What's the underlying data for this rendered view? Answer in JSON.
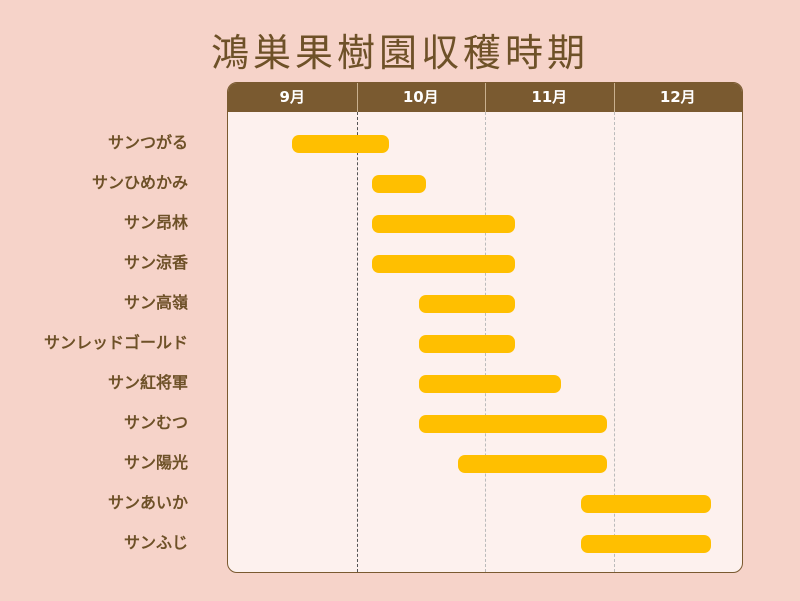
{
  "chart_data": {
    "type": "gantt",
    "title": "鴻巣果樹園収穫時期",
    "months": [
      "9月",
      "10月",
      "11月",
      "12月"
    ],
    "x_range_month": [
      9,
      13
    ],
    "bar_color": "#ffbf00",
    "header_color": "#7a5a30",
    "items": [
      {
        "name": "サンつがる",
        "start": 9.5,
        "end": 10.25
      },
      {
        "name": "サンひめかみ",
        "start": 10.12,
        "end": 10.54
      },
      {
        "name": "サン昂林",
        "start": 10.12,
        "end": 11.23
      },
      {
        "name": "サン涼香",
        "start": 10.12,
        "end": 11.23
      },
      {
        "name": "サン高嶺",
        "start": 10.49,
        "end": 11.23
      },
      {
        "name": "サンレッドゴールド",
        "start": 10.49,
        "end": 11.23
      },
      {
        "name": "サン紅将軍",
        "start": 10.49,
        "end": 11.59
      },
      {
        "name": "サンむつ",
        "start": 10.49,
        "end": 11.95
      },
      {
        "name": "サン陽光",
        "start": 10.79,
        "end": 11.95
      },
      {
        "name": "サンあいか",
        "start": 11.75,
        "end": 12.76
      },
      {
        "name": "サンふじ",
        "start": 11.75,
        "end": 12.76
      }
    ]
  }
}
